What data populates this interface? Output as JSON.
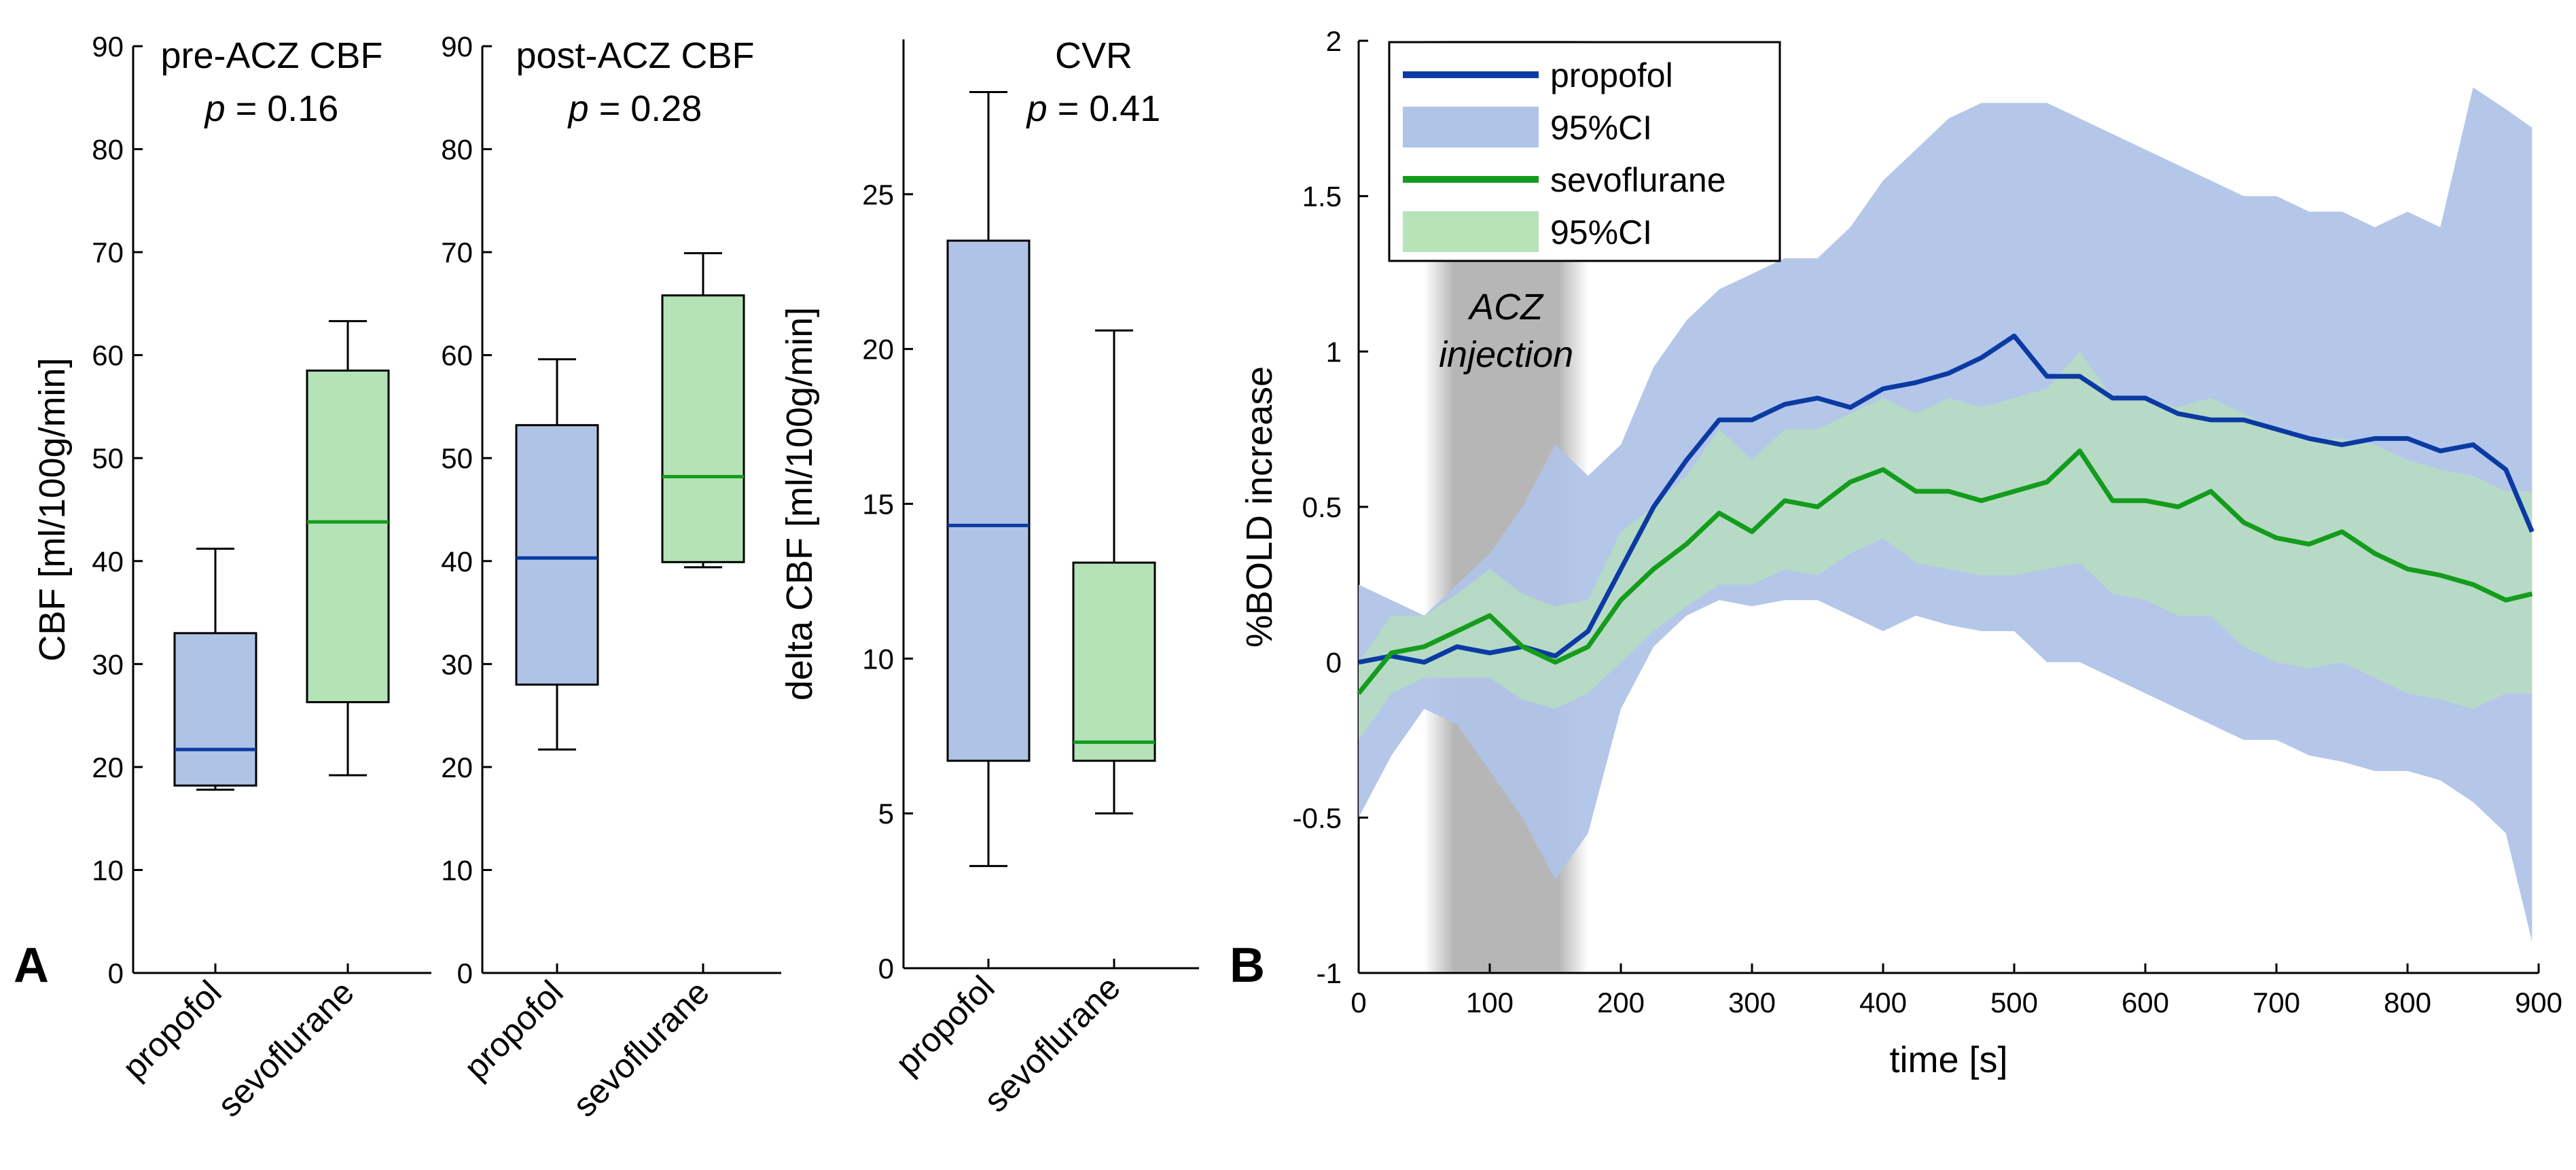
{
  "panel_labels": {
    "a": "A",
    "b": "B"
  },
  "colors": {
    "propofol_line": "#0b3aa3",
    "propofol_fill": "#b0c4e8",
    "propofol_box": "#afc3e6",
    "sevo_line": "#149c1c",
    "sevo_fill": "#b8e3b8",
    "sevo_box": "#b5e2b7",
    "injection_shade": "#a9a9a9"
  },
  "chart_data": [
    {
      "type": "box",
      "id": "pre",
      "title": "pre-ACZ CBF",
      "pvalue": "= 0.16",
      "ylabel": "CBF [ml/100g/min]",
      "ylim": [
        0,
        90
      ],
      "ticks": [
        "0",
        "10",
        "20",
        "30",
        "40",
        "50",
        "60",
        "70",
        "80",
        "90"
      ],
      "categories": [
        "propofol",
        "sevoflurane"
      ],
      "boxes": [
        {
          "name": "propofol",
          "min": 17.8,
          "q1": 18.2,
          "median": 21.7,
          "q3": 33.0,
          "max": 41.2
        },
        {
          "name": "sevoflurane",
          "min": 19.2,
          "q1": 26.3,
          "median": 43.8,
          "q3": 58.5,
          "max": 63.3
        }
      ]
    },
    {
      "type": "box",
      "id": "post",
      "title": "post-ACZ CBF",
      "pvalue": "= 0.28",
      "ylabel": "",
      "ylim": [
        0,
        90
      ],
      "ticks": [
        "0",
        "10",
        "20",
        "30",
        "40",
        "50",
        "60",
        "70",
        "80",
        "90"
      ],
      "categories": [
        "propofol",
        "sevoflurane"
      ],
      "boxes": [
        {
          "name": "propofol",
          "min": 21.7,
          "q1": 28.0,
          "median": 40.3,
          "q3": 53.2,
          "max": 59.6
        },
        {
          "name": "sevoflurane",
          "min": 39.4,
          "q1": 39.9,
          "median": 48.2,
          "q3": 65.8,
          "max": 69.9
        }
      ]
    },
    {
      "type": "box",
      "id": "cvr",
      "title": "CVR",
      "pvalue": "= 0.41",
      "ylabel": "delta CBF [ml/100g/min]",
      "ylim": [
        0,
        30
      ],
      "ticks": [
        "0",
        "5",
        "10",
        "15",
        "20",
        "25"
      ],
      "categories": [
        "propofol",
        "sevoflurane"
      ],
      "boxes": [
        {
          "name": "propofol",
          "min": 3.3,
          "q1": 6.7,
          "median": 14.3,
          "q3": 23.5,
          "max": 28.3
        },
        {
          "name": "sevoflurane",
          "min": 5.0,
          "q1": 6.7,
          "median": 7.3,
          "q3": 13.1,
          "max": 20.6
        }
      ]
    },
    {
      "type": "line",
      "id": "bold",
      "xlabel": "time [s]",
      "ylabel": "%BOLD increase",
      "xlim": [
        0,
        900
      ],
      "ylim": [
        -1,
        2
      ],
      "xticks": [
        "0",
        "100",
        "200",
        "300",
        "400",
        "500",
        "600",
        "700",
        "800",
        "900"
      ],
      "yticks": [
        "-1",
        "-0.5",
        "0",
        "0.5",
        "1",
        "1.5",
        "2"
      ],
      "annotation": {
        "line1": "ACZ",
        "line2": "injection",
        "x_range": [
          50,
          175
        ]
      },
      "legend": [
        {
          "label": "propofol",
          "kind": "line",
          "series": "propofol"
        },
        {
          "label": "95%CI",
          "kind": "fill",
          "series": "propofol"
        },
        {
          "label": "sevoflurane",
          "kind": "line",
          "series": "sevoflurane"
        },
        {
          "label": "95%CI",
          "kind": "fill",
          "series": "sevoflurane"
        }
      ],
      "x": [
        0,
        25,
        50,
        75,
        100,
        125,
        150,
        175,
        200,
        225,
        250,
        275,
        300,
        325,
        350,
        375,
        400,
        425,
        450,
        475,
        500,
        525,
        550,
        575,
        600,
        625,
        650,
        675,
        700,
        725,
        750,
        775,
        800,
        825,
        850,
        875,
        895
      ],
      "series": [
        {
          "name": "propofol",
          "mean": [
            0.0,
            0.02,
            0.0,
            0.05,
            0.03,
            0.05,
            0.02,
            0.1,
            0.3,
            0.5,
            0.65,
            0.78,
            0.78,
            0.83,
            0.85,
            0.82,
            0.88,
            0.9,
            0.93,
            0.98,
            1.05,
            0.92,
            0.92,
            0.85,
            0.85,
            0.8,
            0.78,
            0.78,
            0.75,
            0.72,
            0.7,
            0.72,
            0.72,
            0.68,
            0.7,
            0.62,
            0.42
          ],
          "lower": [
            -0.5,
            -0.3,
            -0.15,
            -0.2,
            -0.35,
            -0.5,
            -0.7,
            -0.55,
            -0.15,
            0.05,
            0.15,
            0.2,
            0.18,
            0.2,
            0.2,
            0.15,
            0.1,
            0.15,
            0.12,
            0.1,
            0.1,
            0.0,
            0.0,
            -0.05,
            -0.1,
            -0.15,
            -0.2,
            -0.25,
            -0.25,
            -0.3,
            -0.32,
            -0.35,
            -0.35,
            -0.38,
            -0.45,
            -0.55,
            -0.9
          ],
          "upper": [
            0.25,
            0.2,
            0.15,
            0.25,
            0.35,
            0.5,
            0.7,
            0.6,
            0.7,
            0.95,
            1.1,
            1.2,
            1.25,
            1.3,
            1.3,
            1.4,
            1.55,
            1.65,
            1.75,
            1.8,
            1.8,
            1.8,
            1.75,
            1.7,
            1.65,
            1.6,
            1.55,
            1.5,
            1.5,
            1.45,
            1.45,
            1.4,
            1.45,
            1.4,
            1.85,
            1.78,
            1.72
          ]
        },
        {
          "name": "sevoflurane",
          "mean": [
            -0.1,
            0.03,
            0.05,
            0.1,
            0.15,
            0.05,
            0.0,
            0.05,
            0.2,
            0.3,
            0.38,
            0.48,
            0.42,
            0.52,
            0.5,
            0.58,
            0.62,
            0.55,
            0.55,
            0.52,
            0.55,
            0.58,
            0.68,
            0.52,
            0.52,
            0.5,
            0.55,
            0.45,
            0.4,
            0.38,
            0.42,
            0.35,
            0.3,
            0.28,
            0.25,
            0.2,
            0.22
          ],
          "lower": [
            -0.25,
            -0.1,
            -0.05,
            -0.05,
            -0.05,
            -0.12,
            -0.15,
            -0.1,
            0.0,
            0.1,
            0.18,
            0.25,
            0.25,
            0.3,
            0.28,
            0.35,
            0.4,
            0.32,
            0.3,
            0.28,
            0.28,
            0.3,
            0.32,
            0.22,
            0.2,
            0.15,
            0.15,
            0.05,
            0.0,
            -0.02,
            0.0,
            -0.05,
            -0.1,
            -0.12,
            -0.15,
            -0.1,
            -0.1
          ],
          "upper": [
            0.0,
            0.15,
            0.15,
            0.22,
            0.3,
            0.22,
            0.18,
            0.2,
            0.42,
            0.5,
            0.6,
            0.75,
            0.65,
            0.75,
            0.75,
            0.8,
            0.85,
            0.8,
            0.85,
            0.82,
            0.85,
            0.88,
            1.0,
            0.85,
            0.85,
            0.82,
            0.85,
            0.8,
            0.75,
            0.72,
            0.72,
            0.7,
            0.65,
            0.62,
            0.6,
            0.55,
            0.55
          ]
        }
      ]
    }
  ]
}
